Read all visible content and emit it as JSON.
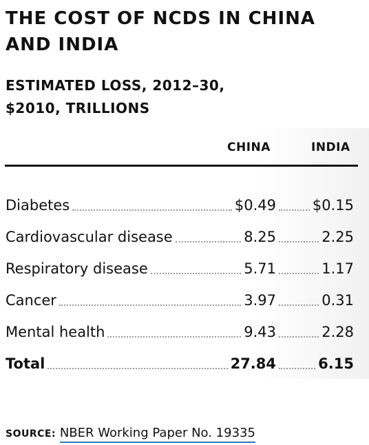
{
  "chart_data": {
    "type": "table",
    "title": "The cost of NCDs in China and India",
    "subtitle_line1": "Estimated loss, 2012–30,",
    "subtitle_line2": "$2010, trillions",
    "columns": [
      "China",
      "India"
    ],
    "rows": [
      {
        "label": "Diabetes",
        "china": "$0.49",
        "india": "$0.15",
        "china_value": 0.49,
        "india_value": 0.15
      },
      {
        "label": "Cardiovascular disease",
        "china": "8.25",
        "india": "2.25",
        "china_value": 8.25,
        "india_value": 2.25
      },
      {
        "label": "Respiratory disease",
        "china": "5.71",
        "india": "1.17",
        "china_value": 5.71,
        "india_value": 1.17
      },
      {
        "label": "Cancer",
        "china": "3.97",
        "india": "0.31",
        "china_value": 3.97,
        "india_value": 0.31
      },
      {
        "label": "Mental health",
        "china": "9.43",
        "india": "2.28",
        "china_value": 9.43,
        "india_value": 2.28
      }
    ],
    "total": {
      "label": "Total",
      "china": "27.84",
      "india": "6.15",
      "china_value": 27.84,
      "india_value": 6.15
    }
  },
  "source": {
    "label": "Source:",
    "text": "NBER Working Paper No. 19335"
  },
  "colors": {
    "text": "#111111",
    "leader_dots": "#9a9a9a",
    "link_underline": "#2a7ab8"
  }
}
